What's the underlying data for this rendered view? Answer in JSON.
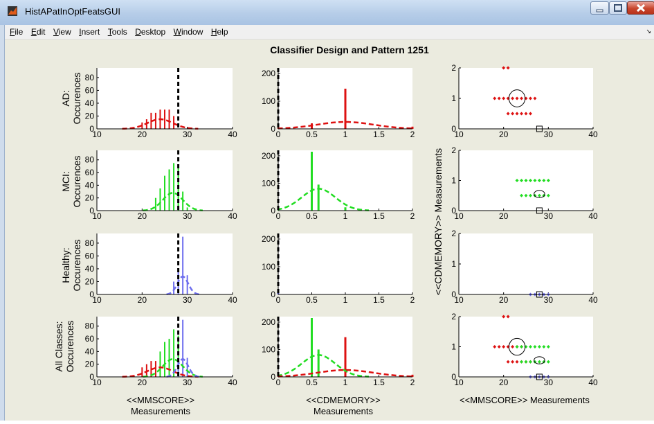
{
  "window": {
    "title": "HistAPatInOptFeatsGUI",
    "minimize_icon": "minimize-icon",
    "maximize_icon": "maximize-icon",
    "close_icon": "close-icon"
  },
  "menu": [
    {
      "label": "File",
      "key": "F",
      "rest": "ile"
    },
    {
      "label": "Edit",
      "key": "E",
      "rest": "dit"
    },
    {
      "label": "View",
      "key": "V",
      "rest": "iew"
    },
    {
      "label": "Insert",
      "key": "I",
      "rest": "nsert"
    },
    {
      "label": "Tools",
      "key": "T",
      "rest": "ools"
    },
    {
      "label": "Desktop",
      "key": "D",
      "rest": "esktop"
    },
    {
      "label": "Window",
      "key": "W",
      "rest": "indow"
    },
    {
      "label": "Help",
      "key": "H",
      "rest": "elp"
    }
  ],
  "figure": {
    "title": "Classifier Design and Pattern 1251",
    "row_labels": [
      [
        "AD:",
        "Occurences"
      ],
      [
        "MCI:",
        "Occurences"
      ],
      [
        "Healthy:",
        "Occurences"
      ],
      [
        "All Classes:",
        "Occurences"
      ]
    ],
    "col1_xlabel": [
      "<<MMSCORE>>",
      "Measurements"
    ],
    "col2_xlabel": [
      "<<CDMEMORY>>",
      "Measurements"
    ],
    "col3_xlabel": "<<MMSCORE>> Measurements",
    "col3_ylabel": "<<CDMEMORY>> Measurements",
    "col1_xticks": [
      "10",
      "20",
      "30",
      "40"
    ],
    "col1_yticks": [
      "0",
      "20",
      "40",
      "60",
      "80"
    ],
    "col2_xticks": [
      "0",
      "0.5",
      "1",
      "1.5",
      "2"
    ],
    "col2_yticks": [
      "0",
      "100",
      "200"
    ],
    "col3_xticks": [
      "10",
      "20",
      "30",
      "40"
    ],
    "col3_yticks": [
      "0",
      "1",
      "2"
    ]
  },
  "colors": {
    "ad": "#dd1111",
    "mci": "#22dd22",
    "healthy": "#6f6fee",
    "threshold": "#000000",
    "axes_bg": "#ffffff",
    "figure_bg": "#ebebdf"
  },
  "chart_data": [
    {
      "type": "bar",
      "panel": "AD MMSCORE histogram",
      "xlim": [
        10,
        40
      ],
      "ylim": [
        0,
        95
      ],
      "series": [
        {
          "color": "#dd1111",
          "x": [
            20,
            21,
            22,
            23,
            24,
            25,
            26,
            27
          ],
          "values": [
            10,
            15,
            25,
            25,
            30,
            30,
            30,
            20
          ]
        }
      ],
      "fit": [
        {
          "color": "#dd1111",
          "mean": 24,
          "sd": 2.8,
          "peak": 15
        }
      ],
      "threshold_x": 28
    },
    {
      "type": "bar",
      "panel": "AD CDMEMORY histogram",
      "xlim": [
        0,
        2
      ],
      "ylim": [
        0,
        220
      ],
      "series": [
        {
          "color": "#dd1111",
          "x": [
            0.5,
            1.0,
            2.0
          ],
          "values": [
            20,
            145,
            8
          ]
        }
      ],
      "fit": [
        {
          "color": "#dd1111",
          "mean": 1.0,
          "sd": 0.42,
          "peak": 25
        }
      ],
      "threshold_x": 0
    },
    {
      "type": "scatter",
      "panel": "AD scatter",
      "xlim": [
        10,
        40
      ],
      "ylim": [
        0,
        2
      ],
      "points": {
        "color": "#dd1111",
        "x": [
          20,
          21,
          18,
          19,
          20,
          21,
          22,
          23,
          24,
          25,
          26,
          27,
          21,
          22,
          23,
          24,
          25,
          26
        ],
        "y": [
          2,
          2,
          1,
          1,
          1,
          1,
          1,
          1,
          1,
          1,
          1,
          1,
          0.5,
          0.5,
          0.5,
          0.5,
          0.5,
          0.5
        ]
      },
      "ellipses": [
        {
          "color": "#000000",
          "cx": 23,
          "cy": 1.0,
          "rx": 1.8,
          "ry": 0.28
        }
      ],
      "marker": {
        "x": 28,
        "y": 0
      }
    },
    {
      "type": "bar",
      "panel": "MCI MMSCORE histogram",
      "xlim": [
        10,
        40
      ],
      "ylim": [
        0,
        95
      ],
      "series": [
        {
          "color": "#22dd22",
          "x": [
            23,
            24,
            25,
            26,
            27,
            28,
            29,
            30
          ],
          "values": [
            20,
            35,
            55,
            65,
            75,
            70,
            30,
            5
          ]
        }
      ],
      "fit": [
        {
          "color": "#22dd22",
          "mean": 26.8,
          "sd": 2.2,
          "peak": 28
        }
      ],
      "threshold_x": 28
    },
    {
      "type": "bar",
      "panel": "MCI CDMEMORY histogram",
      "xlim": [
        0,
        2
      ],
      "ylim": [
        0,
        220
      ],
      "series": [
        {
          "color": "#22dd22",
          "x": [
            0.5,
            0.6,
            1.0
          ],
          "values": [
            215,
            95,
            12
          ]
        }
      ],
      "fit": [
        {
          "color": "#22dd22",
          "mean": 0.6,
          "sd": 0.25,
          "peak": 80
        }
      ],
      "threshold_x": 0
    },
    {
      "type": "scatter",
      "panel": "MCI scatter",
      "xlim": [
        10,
        40
      ],
      "ylim": [
        0,
        2
      ],
      "points": {
        "color": "#22dd22",
        "x": [
          23,
          24,
          25,
          26,
          27,
          28,
          29,
          30,
          24,
          25,
          26,
          27,
          28,
          29,
          30
        ],
        "y": [
          1,
          1,
          1,
          1,
          1,
          1,
          1,
          1,
          0.5,
          0.5,
          0.5,
          0.5,
          0.5,
          0.5,
          0.5
        ]
      },
      "ellipses": [
        {
          "color": "#000000",
          "cx": 28,
          "cy": 0.55,
          "rx": 1.2,
          "ry": 0.12
        }
      ],
      "marker": {
        "x": 28,
        "y": 0
      }
    },
    {
      "type": "bar",
      "panel": "Healthy MMSCORE histogram",
      "xlim": [
        10,
        40
      ],
      "ylim": [
        0,
        95
      ],
      "series": [
        {
          "color": "#6f6fee",
          "x": [
            27,
            28,
            29,
            30
          ],
          "values": [
            20,
            35,
            90,
            30
          ]
        }
      ],
      "fit": [
        {
          "color": "#6f6fee",
          "mean": 29,
          "sd": 1.2,
          "peak": 28
        }
      ],
      "threshold_x": 28
    },
    {
      "type": "bar",
      "panel": "Healthy CDMEMORY histogram",
      "xlim": [
        0,
        2
      ],
      "ylim": [
        0,
        220
      ],
      "series": [
        {
          "color": "#6f6fee",
          "x": [
            0.0
          ],
          "values": [
            10
          ]
        }
      ],
      "threshold_x": 0
    },
    {
      "type": "scatter",
      "panel": "Healthy scatter",
      "xlim": [
        10,
        40
      ],
      "ylim": [
        0,
        2
      ],
      "points": {
        "color": "#6f6fee",
        "x": [
          26,
          27,
          28,
          29,
          30
        ],
        "y": [
          0,
          0,
          0,
          0,
          0
        ]
      },
      "marker": {
        "x": 28,
        "y": 0
      }
    },
    {
      "type": "bar",
      "panel": "All Classes MMSCORE histogram",
      "xlim": [
        10,
        40
      ],
      "ylim": [
        0,
        95
      ],
      "series": [
        {
          "color": "#dd1111",
          "x": [
            20,
            21,
            22,
            23,
            24,
            25
          ],
          "values": [
            15,
            20,
            25,
            25,
            25,
            10
          ]
        },
        {
          "color": "#22dd22",
          "x": [
            24,
            25,
            26,
            27,
            28
          ],
          "values": [
            40,
            55,
            60,
            75,
            65
          ]
        },
        {
          "color": "#6f6fee",
          "x": [
            28,
            29,
            30
          ],
          "values": [
            30,
            90,
            30
          ]
        }
      ],
      "fit": [
        {
          "color": "#dd1111",
          "mean": 24,
          "sd": 2.8,
          "peak": 15
        },
        {
          "color": "#22dd22",
          "mean": 26.8,
          "sd": 2.2,
          "peak": 28
        },
        {
          "color": "#6f6fee",
          "mean": 29,
          "sd": 1.2,
          "peak": 28
        }
      ],
      "threshold_x": 28
    },
    {
      "type": "bar",
      "panel": "All Classes CDMEMORY histogram",
      "xlim": [
        0,
        2
      ],
      "ylim": [
        0,
        220
      ],
      "series": [
        {
          "color": "#22dd22",
          "x": [
            0.5,
            0.6,
            1.0
          ],
          "values": [
            215,
            100,
            12
          ]
        },
        {
          "color": "#dd1111",
          "x": [
            1.0,
            2.0
          ],
          "values": [
            145,
            8
          ]
        },
        {
          "color": "#6f6fee",
          "x": [
            0.0
          ],
          "values": [
            10
          ]
        }
      ],
      "fit": [
        {
          "color": "#22dd22",
          "mean": 0.6,
          "sd": 0.25,
          "peak": 80
        },
        {
          "color": "#dd1111",
          "mean": 1.0,
          "sd": 0.42,
          "peak": 25
        }
      ],
      "threshold_x": 0
    },
    {
      "type": "scatter",
      "panel": "All Classes scatter",
      "xlim": [
        10,
        40
      ],
      "ylim": [
        0,
        2
      ],
      "groups": [
        {
          "color": "#dd1111",
          "x": [
            20,
            21,
            18,
            19,
            20,
            21,
            22,
            23,
            24,
            21,
            22,
            23,
            24,
            25,
            26
          ],
          "y": [
            2,
            2,
            1,
            1,
            1,
            1,
            1,
            1,
            1,
            0.5,
            0.5,
            0.5,
            0.5,
            0.5,
            0.5
          ]
        },
        {
          "color": "#22dd22",
          "x": [
            23,
            24,
            25,
            26,
            27,
            28,
            29,
            30,
            24,
            25,
            26,
            27,
            28,
            29,
            30
          ],
          "y": [
            1,
            1,
            1,
            1,
            1,
            1,
            1,
            1,
            0.5,
            0.5,
            0.5,
            0.5,
            0.5,
            0.5,
            0.5
          ]
        },
        {
          "color": "#6f6fee",
          "x": [
            26,
            27,
            28,
            29,
            30
          ],
          "y": [
            0,
            0,
            0,
            0,
            0
          ]
        }
      ],
      "ellipses": [
        {
          "color": "#000000",
          "cx": 23,
          "cy": 1.0,
          "rx": 1.8,
          "ry": 0.28
        },
        {
          "color": "#000000",
          "cx": 28,
          "cy": 0.55,
          "rx": 1.2,
          "ry": 0.12
        }
      ],
      "marker": {
        "x": 28,
        "y": 0
      }
    }
  ]
}
